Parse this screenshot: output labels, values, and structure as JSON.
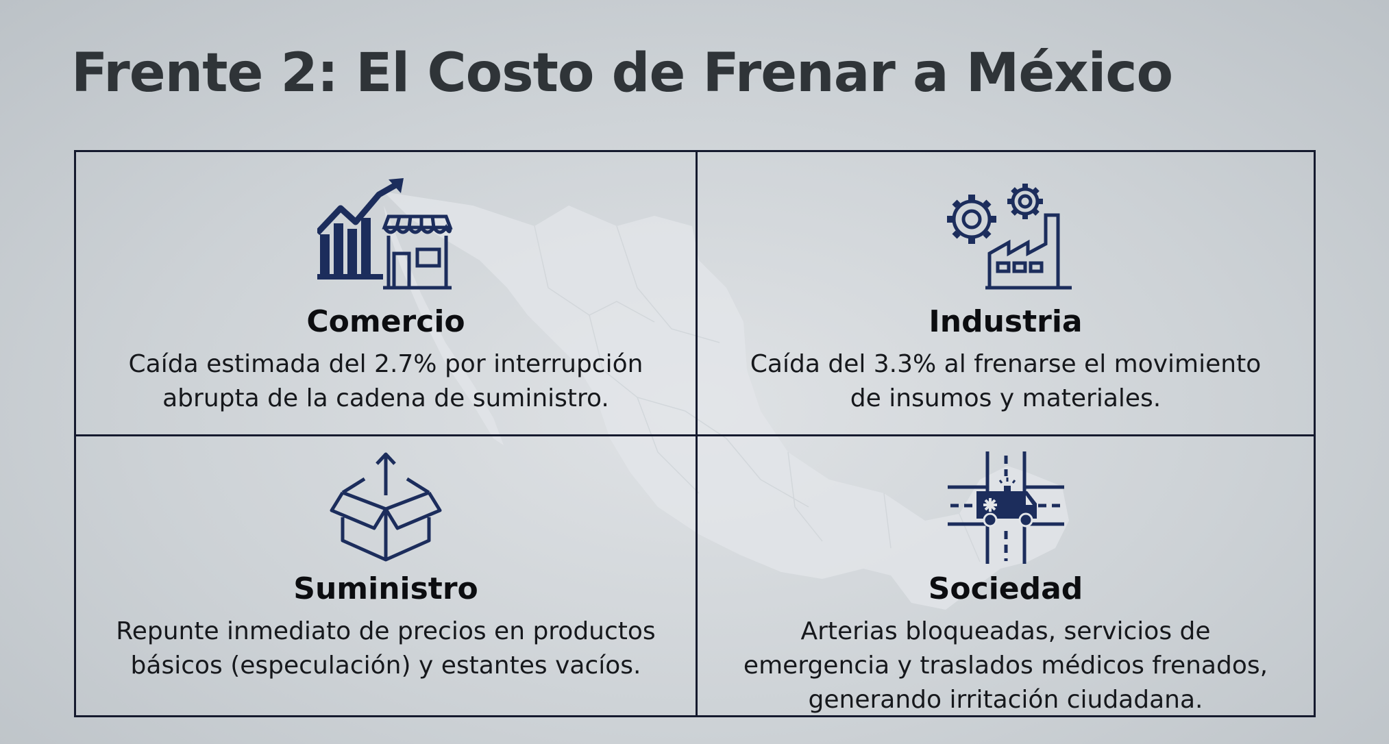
{
  "slide": {
    "title": "Frente 2: El Costo de Frenar a México"
  },
  "cards": [
    {
      "title": "Comercio",
      "icon": "store-growth-chart-icon",
      "desc_lines": [
        "Caída estimada del 2.7% por interrupción",
        "abrupta de la cadena de suministro."
      ]
    },
    {
      "title": "Industria",
      "icon": "factory-gears-icon",
      "desc_lines": [
        "Caída del 3.3% al frenarse el movimiento",
        "de insumos y materiales."
      ]
    },
    {
      "title": "Suministro",
      "icon": "open-box-icon",
      "desc_lines": [
        "Repunte inmediato de precios en productos",
        "básicos (especulación) y estantes vacíos."
      ]
    },
    {
      "title": "Sociedad",
      "icon": "ambulance-intersection-icon",
      "desc_lines": [
        "Arterias bloqueadas, servicios de",
        "emergencia y traslados médicos frenados,",
        "generando irritación ciudadana."
      ]
    }
  ],
  "colors": {
    "icon": "#1c2d5c",
    "border": "#151a2e",
    "title_text": "#2f3438"
  }
}
